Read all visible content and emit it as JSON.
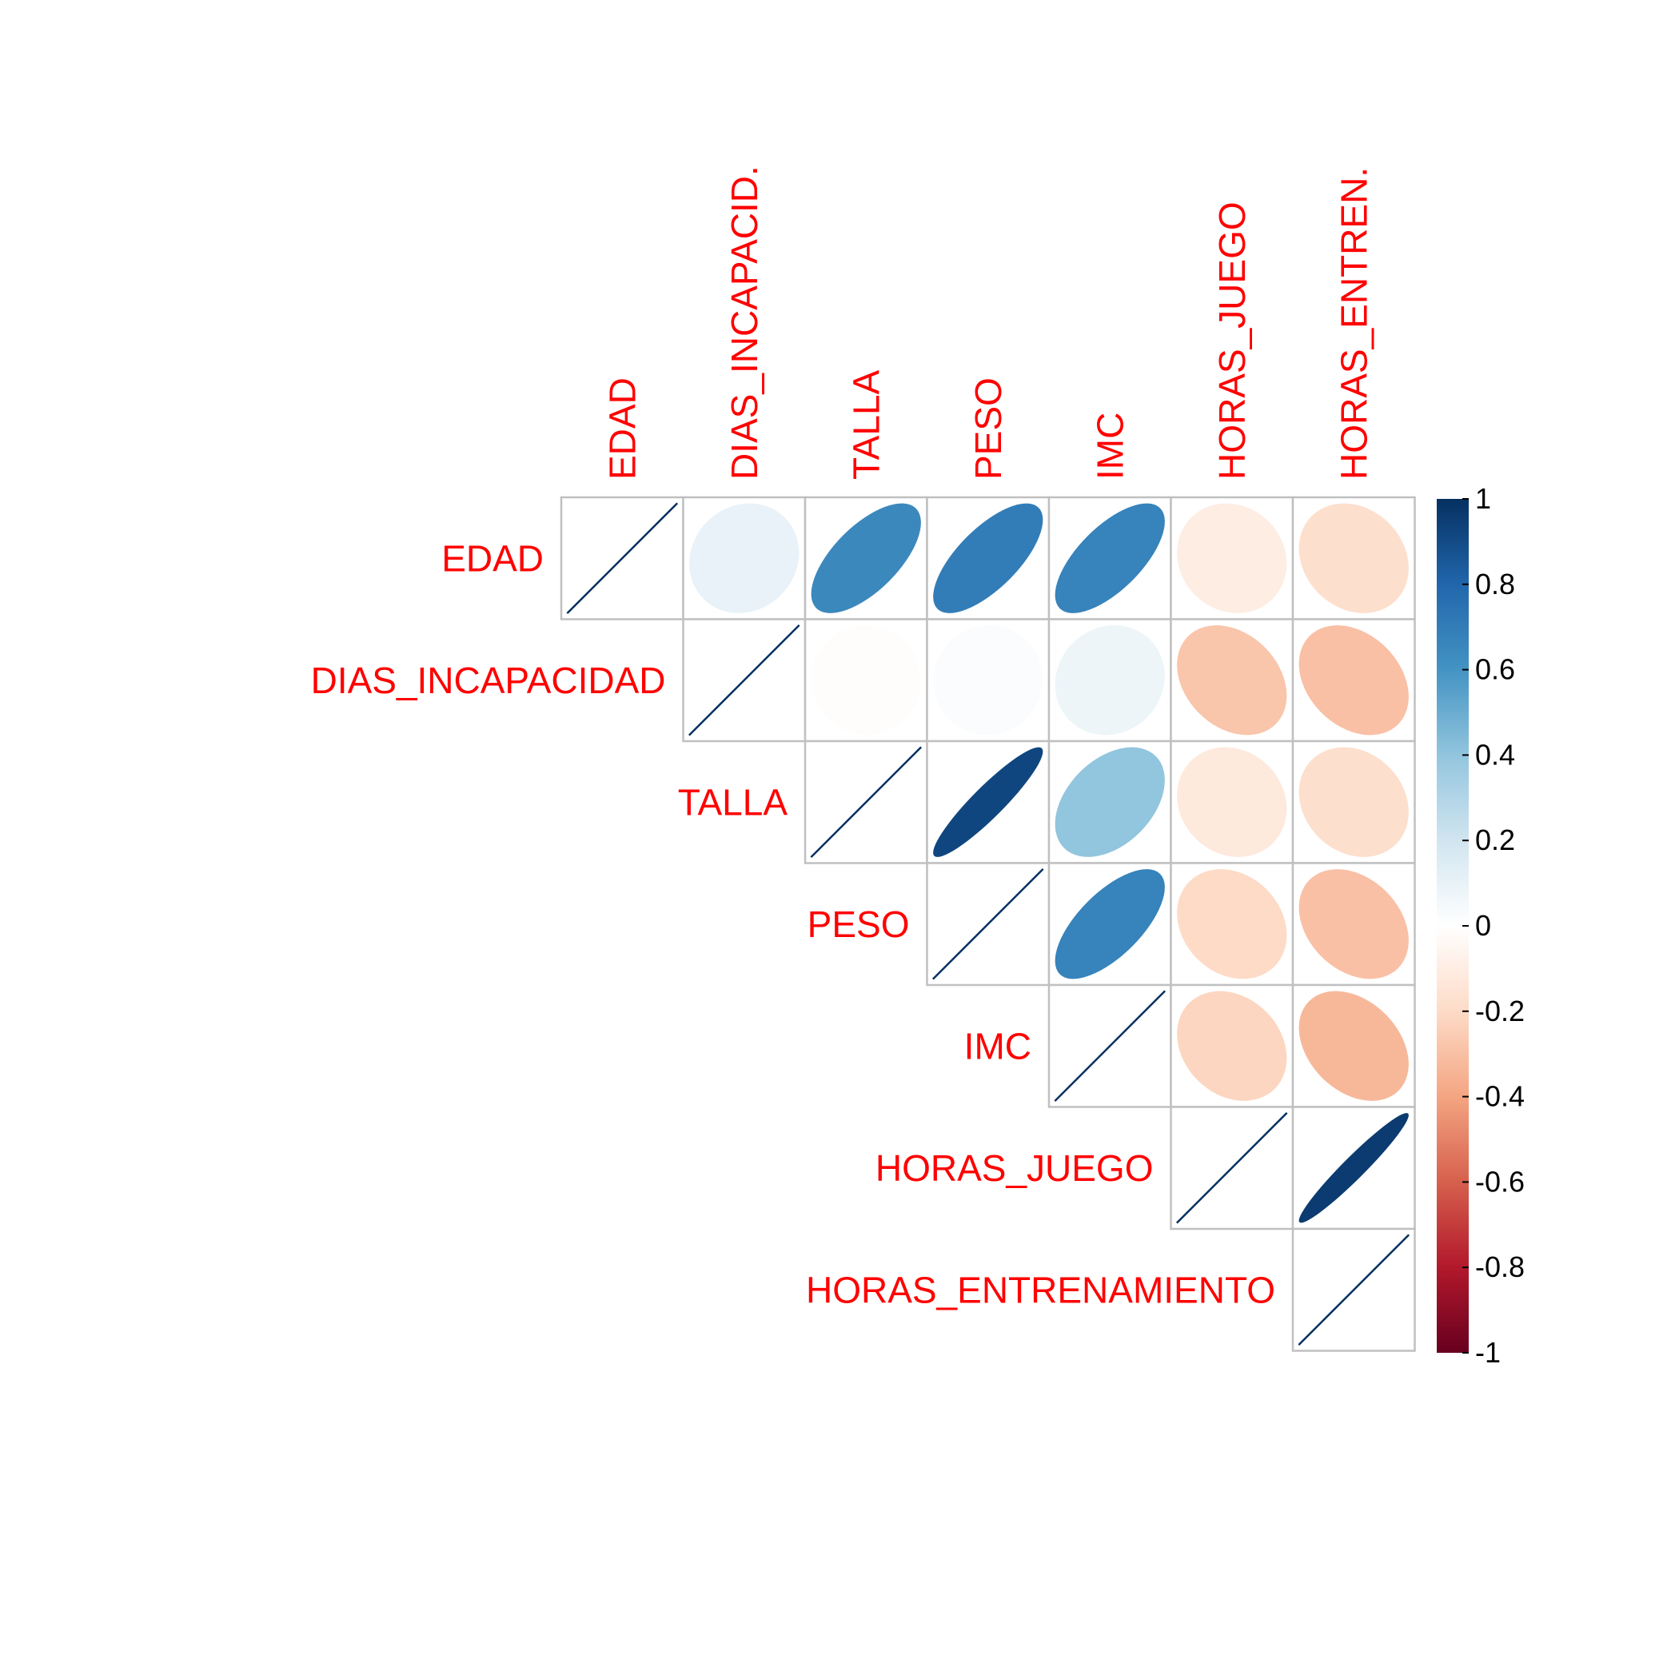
{
  "chart_data": {
    "type": "heatmap",
    "variant": "upper-triangle correlation matrix (ellipse glyphs)",
    "title": "",
    "variables": [
      "EDAD",
      "DIAS_INCAPACIDAD",
      "TALLA",
      "PESO",
      "IMC",
      "HORAS_JUEGO",
      "HORAS_ENTRENAMIENTO"
    ],
    "column_labels": [
      "EDAD",
      "DIAS_INCAPACID.",
      "TALLA",
      "PESO",
      "IMC",
      "HORAS_JUEGO",
      "HORAS_ENTREN."
    ],
    "matrix": [
      [
        1,
        0.1,
        0.65,
        0.7,
        0.67,
        -0.1,
        -0.18
      ],
      [
        0.1,
        1,
        -0.01,
        0.02,
        0.08,
        -0.28,
        -0.3
      ],
      [
        0.65,
        -0.01,
        1,
        0.92,
        0.4,
        -0.12,
        -0.18
      ],
      [
        0.7,
        0.02,
        0.92,
        1,
        0.67,
        -0.2,
        -0.3
      ],
      [
        0.67,
        0.08,
        0.4,
        0.67,
        1,
        -0.22,
        -0.33
      ],
      [
        -0.1,
        -0.28,
        -0.12,
        -0.2,
        -0.22,
        1,
        0.96
      ],
      [
        -0.18,
        -0.3,
        -0.18,
        -0.3,
        -0.33,
        0.96,
        1
      ]
    ],
    "colorbar": {
      "range": [
        -1,
        1
      ],
      "ticks": [
        "1",
        "0.8",
        "0.6",
        "0.4",
        "0.2",
        "0",
        "-0.2",
        "-0.4",
        "-0.6",
        "-0.8",
        "-1"
      ],
      "tick_values": [
        1,
        0.8,
        0.6,
        0.4,
        0.2,
        0,
        -0.2,
        -0.4,
        -0.6,
        -0.8,
        -1
      ],
      "colors": [
        "#67001f",
        "#b2182b",
        "#d6604d",
        "#f4a582",
        "#fddbc7",
        "#ffffff",
        "#d1e5f0",
        "#92c5de",
        "#4393c3",
        "#2166ac",
        "#053061"
      ],
      "placement": "right"
    },
    "label_color": "#ff0000",
    "grid_color": "#c0c0c0"
  }
}
